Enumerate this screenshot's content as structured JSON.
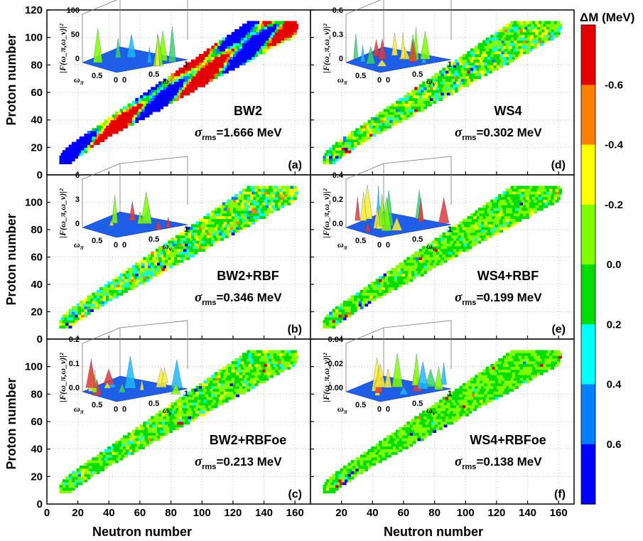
{
  "figure": {
    "x_label": "Neutron number",
    "y_label": "Proton number",
    "colorbar_title": "ΔM (MeV)",
    "colorbar_ticks": [
      "-0.6",
      "-0.4",
      "-0.2",
      "0.0",
      "0.2",
      "0.4",
      "0.6"
    ]
  },
  "colors": {
    "bins": [
      "#e40000",
      "#ff7f00",
      "#ffff00",
      "#7fff00",
      "#00dd00",
      "#00ffff",
      "#0080ff",
      "#0000ff"
    ]
  },
  "chart_data": [
    {
      "type": "heatmap",
      "panel": "(a)",
      "model": "BW2",
      "sigma_label": "σ",
      "sigma_sub": "rms",
      "sigma_value": "=1.666 MeV",
      "xlim": [
        0,
        170
      ],
      "ylim": [
        0,
        120
      ],
      "rms_MeV": 1.666,
      "x_ticks": [],
      "y_ticks": [
        "0",
        "20",
        "40",
        "60",
        "80",
        "100",
        "120"
      ],
      "inset": {
        "zlabel": "|F(ω_π,ω_ν)|²",
        "z_ticks": [
          "100",
          "50",
          "0"
        ],
        "peak": 100
      }
    },
    {
      "type": "heatmap",
      "panel": "(b)",
      "model": "BW2+RBF",
      "sigma_label": "σ",
      "sigma_sub": "rms",
      "sigma_value": "=0.346 MeV",
      "xlim": [
        0,
        170
      ],
      "ylim": [
        0,
        120
      ],
      "rms_MeV": 0.346,
      "x_ticks": [],
      "y_ticks": [
        "0",
        "20",
        "40",
        "60",
        "80",
        "100"
      ],
      "inset": {
        "zlabel": "|F(ω_π,ω_ν)|²",
        "z_ticks": [
          "6",
          "3",
          "0"
        ],
        "peak": 6
      }
    },
    {
      "type": "heatmap",
      "panel": "(c)",
      "model": "BW2+RBFoe",
      "sigma_label": "σ",
      "sigma_sub": "rms",
      "sigma_value": "=0.213 MeV",
      "xlim": [
        0,
        170
      ],
      "ylim": [
        0,
        120
      ],
      "rms_MeV": 0.213,
      "x_ticks": [
        "0",
        "20",
        "40",
        "60",
        "80",
        "100",
        "120",
        "140",
        "160"
      ],
      "y_ticks": [
        "0",
        "20",
        "40",
        "60",
        "80",
        "100"
      ],
      "inset": {
        "zlabel": "|F(ω_π,ω_ν)|²",
        "z_ticks": [
          "0.2",
          "0.1",
          "0.0"
        ],
        "peak": 0.2
      }
    },
    {
      "type": "heatmap",
      "panel": "(d)",
      "model": "WS4",
      "sigma_label": "σ",
      "sigma_sub": "rms",
      "sigma_value": "=0.302 MeV",
      "xlim": [
        0,
        170
      ],
      "ylim": [
        0,
        120
      ],
      "rms_MeV": 0.302,
      "x_ticks": [],
      "y_ticks": [],
      "inset": {
        "zlabel": "|F(ω_π,ω_ν)|²",
        "z_ticks": [
          "0.6",
          "0.3",
          "0"
        ],
        "peak": 0.6
      }
    },
    {
      "type": "heatmap",
      "panel": "(e)",
      "model": "WS4+RBF",
      "sigma_label": "σ",
      "sigma_sub": "rms",
      "sigma_value": "=0.199 MeV",
      "xlim": [
        0,
        170
      ],
      "ylim": [
        0,
        120
      ],
      "rms_MeV": 0.199,
      "x_ticks": [],
      "y_ticks": [],
      "inset": {
        "zlabel": "|F(ω_π,ω_ν)|²",
        "z_ticks": [
          "0.4",
          "0.2",
          "0.0"
        ],
        "peak": 0.4
      }
    },
    {
      "type": "heatmap",
      "panel": "(f)",
      "model": "WS4+RBFoe",
      "sigma_label": "σ",
      "sigma_sub": "rms",
      "sigma_value": "=0.138 MeV",
      "xlim": [
        0,
        170
      ],
      "ylim": [
        0,
        120
      ],
      "rms_MeV": 0.138,
      "x_ticks": [
        "20",
        "40",
        "60",
        "80",
        "100",
        "120",
        "140",
        "160"
      ],
      "y_ticks": [],
      "inset": {
        "zlabel": "|F(ω_π,ω_ν)|²",
        "z_ticks": [
          "0.04",
          "0.02",
          "0.00"
        ],
        "peak": 0.04
      }
    }
  ],
  "inset_axes": {
    "x_label": "ω",
    "x_sub": "π",
    "y_label": "ω",
    "y_sub": "ν",
    "x_ticks": [
      "0.5",
      "0"
    ],
    "y_ticks": [
      "0",
      "0.5",
      "1"
    ]
  }
}
